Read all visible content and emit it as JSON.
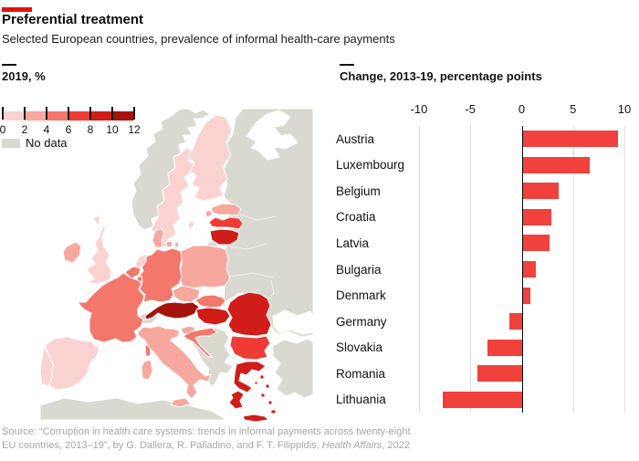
{
  "header": {
    "title": "Preferential treatment",
    "subtitle": "Selected European countries, prevalence of informal health-care payments"
  },
  "map_panel": {
    "title": "2019, %",
    "legend": {
      "tick_labels": [
        "0",
        "2",
        "4",
        "6",
        "8",
        "10",
        "12"
      ],
      "bin_ranges": [
        "0-2",
        "2-4",
        "4-6",
        "6-8",
        "8-10",
        "10-12"
      ],
      "bin_colors": [
        "#fad3d0",
        "#f8a79f",
        "#f4776b",
        "#ee3b33",
        "#d01d1a",
        "#a5130e"
      ],
      "no_data_label": "No data",
      "no_data_color": "#d9d9d0"
    },
    "countries": {
      "sweden": {
        "bin": 1
      },
      "finland": {
        "bin": 1
      },
      "united_kingdom": {
        "bin": 1
      },
      "spain": {
        "bin": 1
      },
      "portugal": {
        "bin": 1
      },
      "netherlands": {
        "bin": 1
      },
      "ireland": {
        "bin": 2
      },
      "denmark": {
        "bin": 2
      },
      "estonia": {
        "bin": 2
      },
      "poland": {
        "bin": 2
      },
      "czech_republic": {
        "bin": 2
      },
      "slovenia": {
        "bin": 2
      },
      "italy": {
        "bin": 2
      },
      "germany": {
        "bin": 3
      },
      "france": {
        "bin": 3
      },
      "belgium": {
        "bin": 3
      },
      "luxembourg": {
        "bin": 3
      },
      "slovakia": {
        "bin": 3
      },
      "croatia": {
        "bin": 3
      },
      "latvia": {
        "bin": 4
      },
      "bulgaria": {
        "bin": 4
      },
      "lithuania": {
        "bin": 5
      },
      "hungary": {
        "bin": 5
      },
      "romania": {
        "bin": 5
      },
      "greece": {
        "bin": 5
      },
      "austria": {
        "bin": 6
      },
      "norway": {
        "bin": 0
      },
      "switzerland": {
        "bin": 0
      },
      "eastern_neighbours": {
        "bin": 0
      },
      "west_balkans": {
        "bin": 0
      },
      "turkey": {
        "bin": 0
      },
      "north_africa": {
        "bin": 0
      },
      "kaliningrad": {
        "bin": 0
      }
    }
  },
  "bar_panel": {
    "title": "Change, 2013-19, percentage points"
  },
  "chart_data": {
    "type": "bar",
    "orientation": "horizontal",
    "title": "Change, 2013-19, percentage points",
    "categories": [
      "Austria",
      "Luxembourg",
      "Belgium",
      "Croatia",
      "Latvia",
      "Bulgaria",
      "Denmark",
      "Germany",
      "Slovakia",
      "Romania",
      "Lithuania"
    ],
    "values": [
      9.4,
      6.6,
      3.6,
      2.9,
      2.7,
      1.4,
      0.8,
      -1.2,
      -3.3,
      -4.3,
      -7.7
    ],
    "xlim": [
      -10,
      10
    ],
    "x_ticks": [
      -10,
      -5,
      0,
      5,
      10
    ],
    "grid": true,
    "bar_color": "#f0413c"
  },
  "source": {
    "line1": "Source: “Corruption in health care systems: trends in informal payments across twenty-eight",
    "line2_prefix": "EU countries, 2013–19”, by G. Dallera, R. Palladino, and F. T. Filippidis, ",
    "line2_italic": "Health Affairs",
    "line2_suffix": ", 2022"
  },
  "accent_color": "#e3120b"
}
